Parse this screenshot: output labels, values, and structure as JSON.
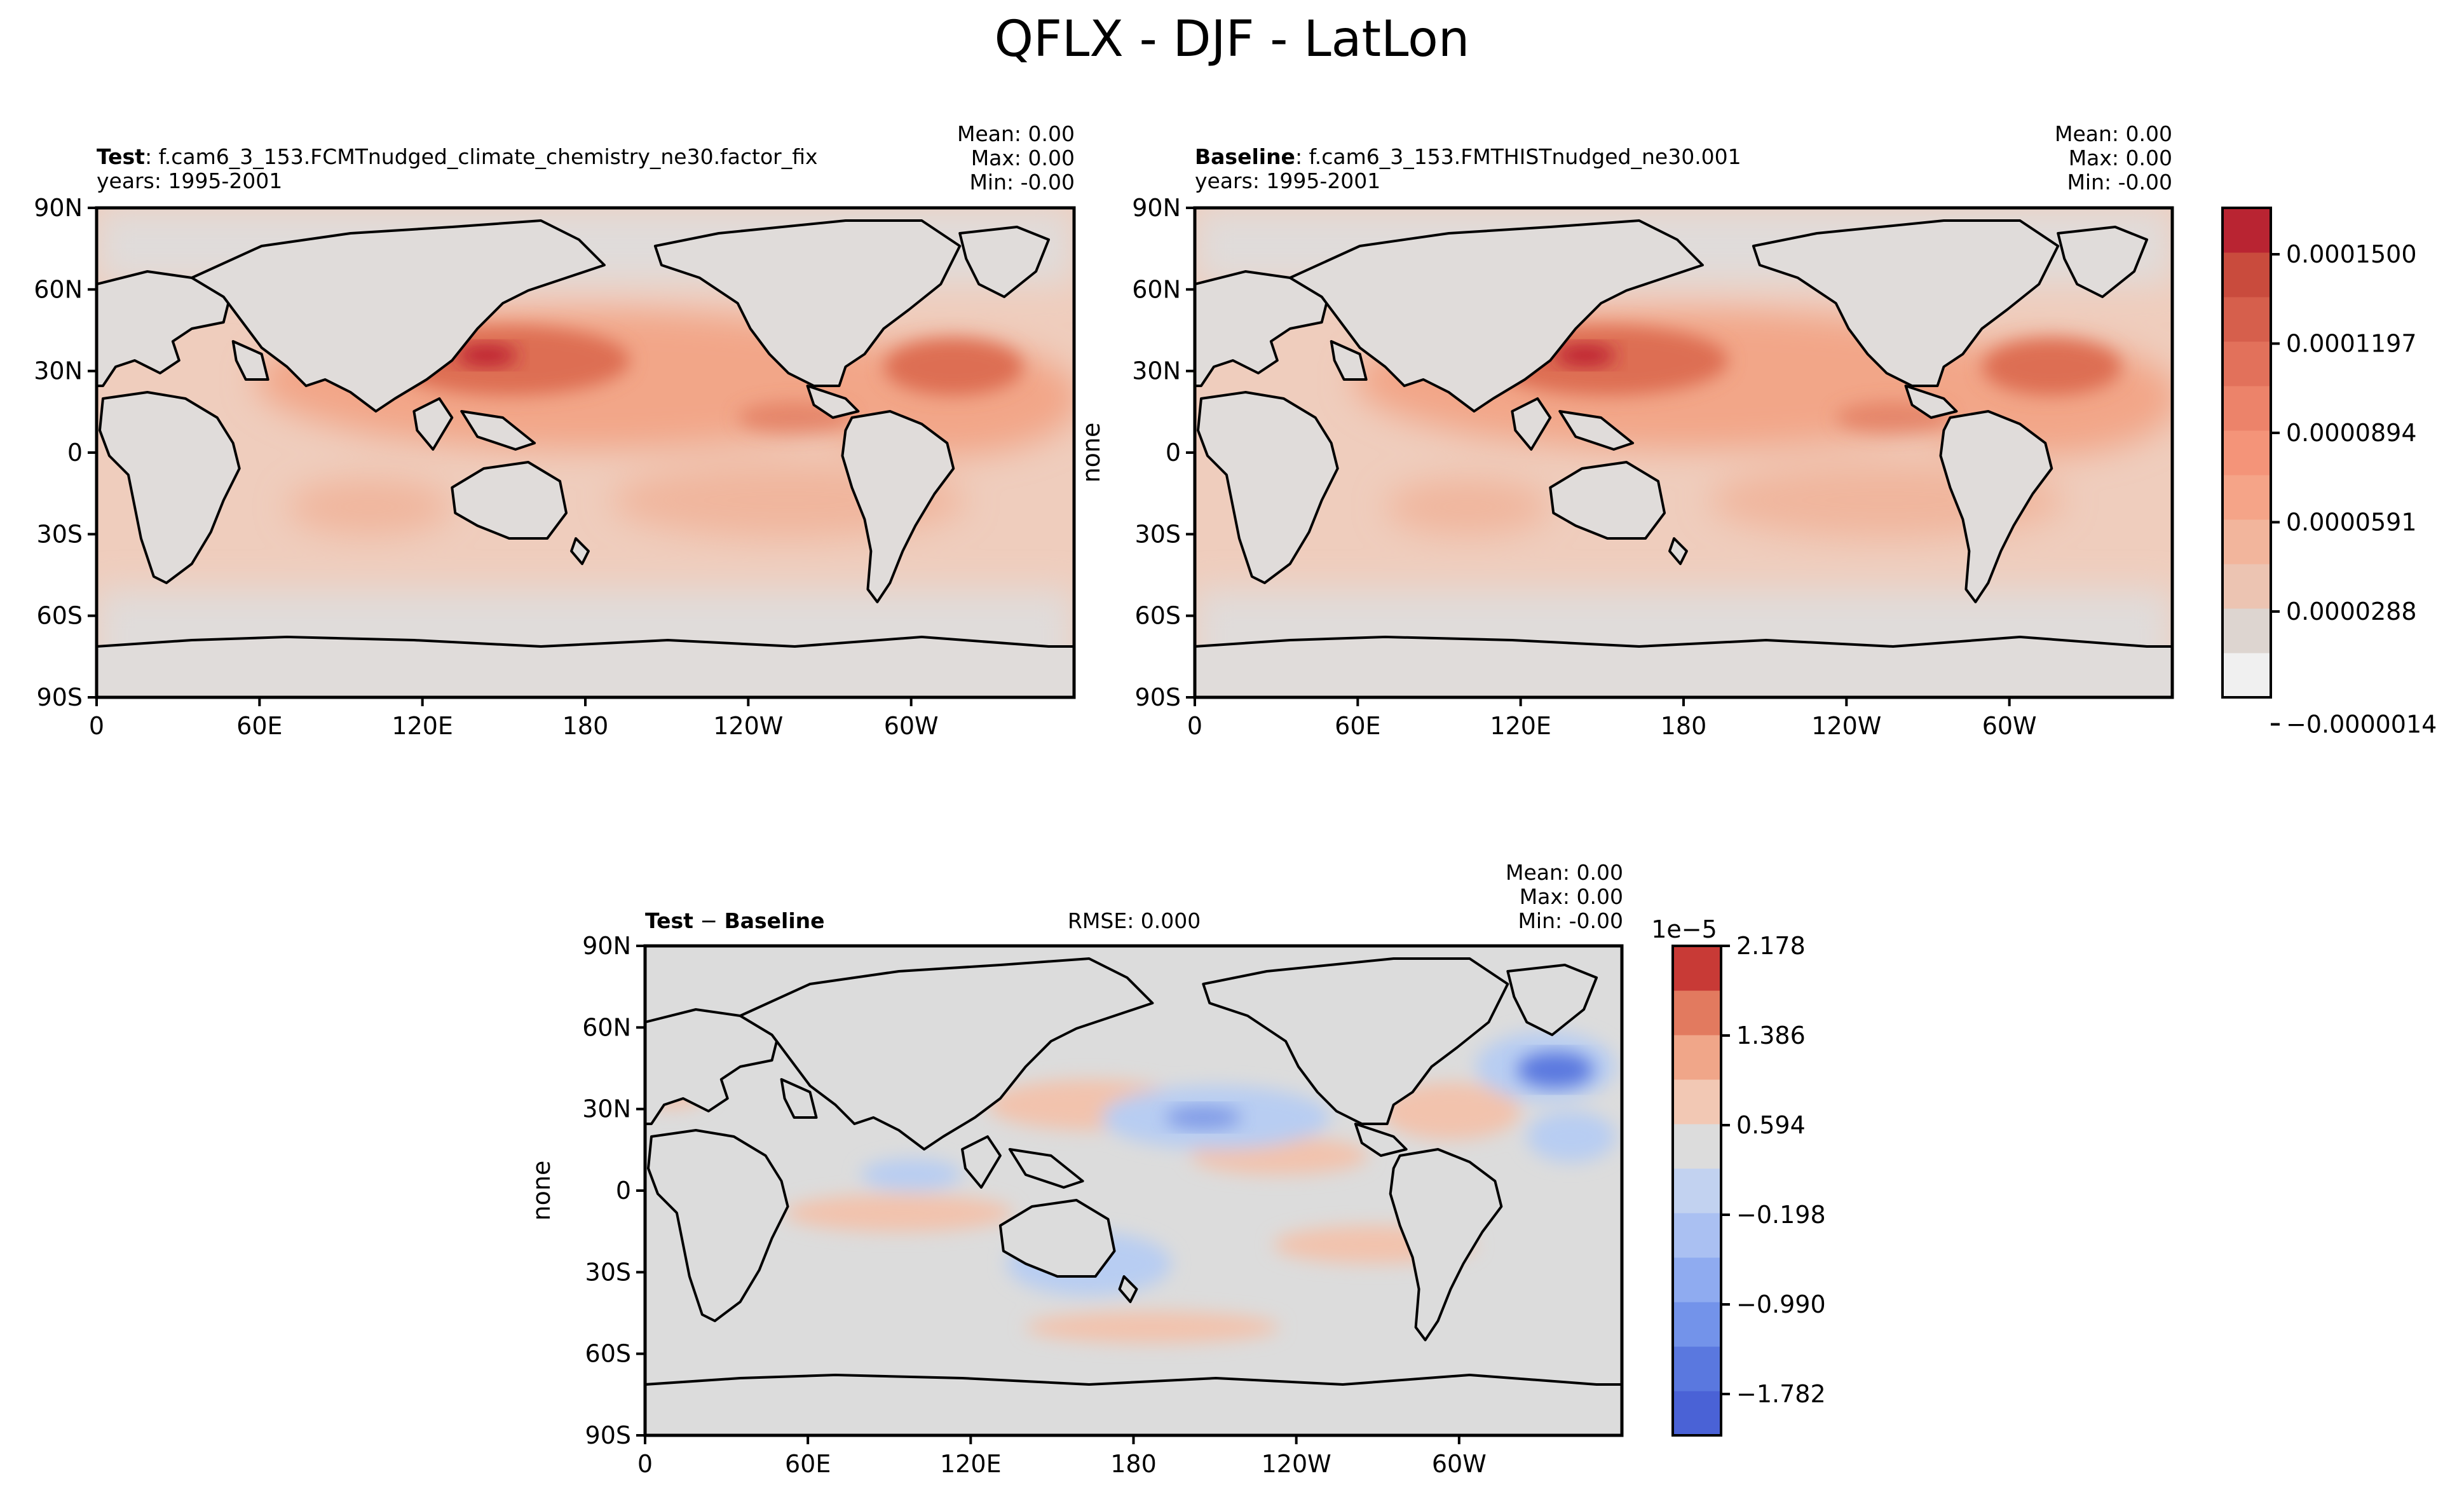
{
  "figure": {
    "title": "QFLX - DJF - LatLon"
  },
  "colors": {
    "land": "#e0dcda",
    "ocean_low": "#efcdbd",
    "ocean_mid": "#f2a688",
    "ocean_high": "#dd6e52",
    "peak": "#be2430",
    "diff_neutral": "#dcdcdc",
    "diff_pos": "#f2c3ad",
    "diff_neg": "#b8cdf2",
    "diff_neg_strong": "#5a78df",
    "coast": "#000000"
  },
  "panels": {
    "test": {
      "label_bold": "Test",
      "label_text": ": f.cam6_3_153.FCMTnudged_climate_chemistry_ne30.factor_fix",
      "years": "years: 1995-2001",
      "mean": "Mean:  0.00",
      "max": "Max:  0.00",
      "min": "Min: -0.00"
    },
    "baseline": {
      "label_bold": "Baseline",
      "label_text": ": f.cam6_3_153.FMTHISTnudged_ne30.001",
      "years": "years: 1995-2001",
      "ylabel": "none",
      "mean": "Mean:  0.00",
      "max": "Max:  0.00",
      "min": "Min: -0.00"
    },
    "diff": {
      "label_bold_a": "Test",
      "label_sep": " − ",
      "label_bold_b": "Baseline",
      "rmse": "RMSE: 0.000",
      "ylabel": "none",
      "mean": "Mean:  0.00",
      "max": "Max:  0.00",
      "min": "Min: -0.00"
    }
  },
  "chart_data": [
    {
      "type": "heatmap",
      "title": "Test",
      "x_ticks": [
        "0",
        "60E",
        "120E",
        "180",
        "120W",
        "60W"
      ],
      "y_ticks": [
        "90N",
        "60N",
        "30N",
        "0",
        "30S",
        "60S",
        "90S"
      ],
      "xlim": [
        0,
        360
      ],
      "ylim": [
        -90,
        90
      ]
    },
    {
      "type": "heatmap",
      "title": "Baseline",
      "x_ticks": [
        "0",
        "60E",
        "120E",
        "180",
        "120W",
        "60W"
      ],
      "y_ticks": [
        "90N",
        "60N",
        "30N",
        "0",
        "30S",
        "60S",
        "90S"
      ],
      "xlim": [
        0,
        360
      ],
      "ylim": [
        -90,
        90
      ],
      "colorbar": {
        "ticks": [
          "0.0001500",
          "0.0001197",
          "0.0000894",
          "0.0000591",
          "0.0000288",
          "−0.0000014"
        ],
        "colors": [
          "#f0f0f0",
          "#ddd5d0",
          "#ecc4b2",
          "#f2b59c",
          "#f5a488",
          "#f49479",
          "#ec836a",
          "#e2715b",
          "#d65f4c",
          "#c94b3d",
          "#b92432"
        ]
      }
    },
    {
      "type": "heatmap",
      "title": "Test − Baseline",
      "x_ticks": [
        "0",
        "60E",
        "120E",
        "180",
        "120W",
        "60W"
      ],
      "y_ticks": [
        "90N",
        "60N",
        "30N",
        "0",
        "30S",
        "60S",
        "90S"
      ],
      "xlim": [
        0,
        360
      ],
      "ylim": [
        -90,
        90
      ],
      "colorbar": {
        "offset": "1e−5",
        "ticks": [
          "2.178",
          "1.386",
          "0.594",
          "−0.198",
          "−0.990",
          "−1.782"
        ],
        "colors": [
          "#4a62d6",
          "#5a78df",
          "#7393ea",
          "#8fabf0",
          "#aac0f2",
          "#c2d2f0",
          "#dcdcdc",
          "#f2c8b4",
          "#f0a689",
          "#e27a5f",
          "#c83a36"
        ]
      }
    }
  ]
}
